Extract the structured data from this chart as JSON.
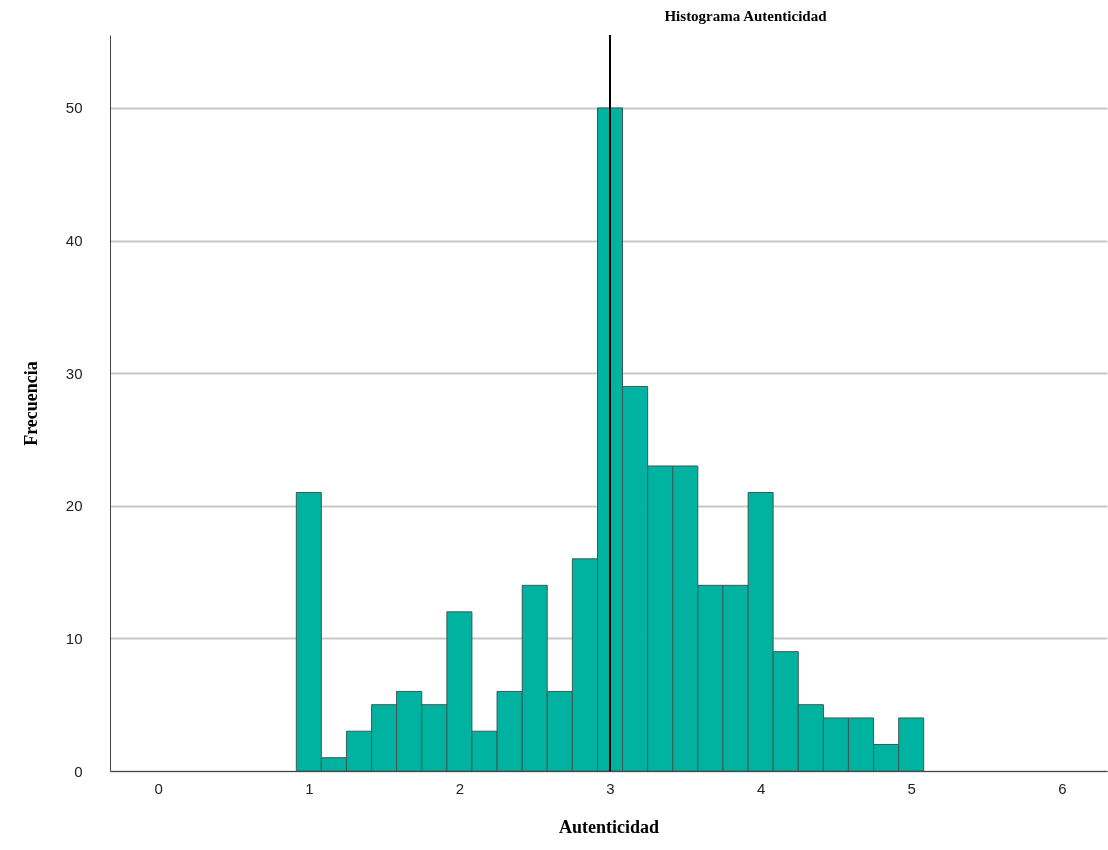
{
  "chart_data": {
    "type": "histogram",
    "title": "Histograma Autenticidad",
    "xlabel": "Autenticidad",
    "ylabel": "Frecuencia",
    "bins": [
      0.917,
      1.083,
      1.25,
      1.417,
      1.583,
      1.75,
      1.917,
      2.083,
      2.25,
      2.417,
      2.583,
      2.75,
      2.917,
      3.083,
      3.25,
      3.417,
      3.583,
      3.75,
      3.917,
      4.083,
      4.25,
      4.417,
      4.583,
      4.75,
      4.917,
      5.083
    ],
    "values": [
      21,
      1,
      3,
      5,
      6,
      5,
      12,
      3,
      6,
      14,
      6,
      16,
      50,
      29,
      23,
      23,
      14,
      14,
      21,
      9,
      5,
      4,
      4,
      2,
      4
    ],
    "color": "#00b3a0",
    "xlim": [
      -0.32,
      6.3
    ],
    "xticks": [
      0,
      1,
      2,
      3,
      4,
      5,
      6
    ],
    "ylim": [
      0,
      55.5
    ],
    "yticks": [
      0,
      10,
      20,
      30,
      40,
      50
    ],
    "grid": "y",
    "ref_lines": [
      {
        "axis": "x",
        "value": 3,
        "color": "#000000"
      }
    ]
  }
}
